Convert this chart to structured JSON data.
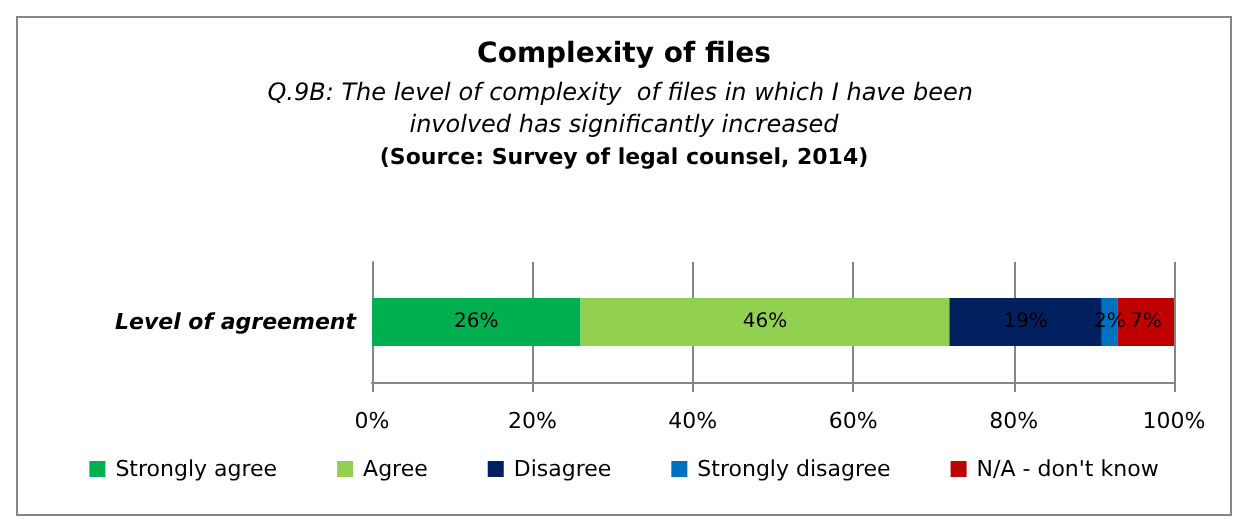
{
  "chart_data": {
    "type": "bar",
    "orientation": "horizontal",
    "stacked": true,
    "title": "Complexity of files",
    "subtitle": "Q.9B: The level of complexity  of files in which I have been involved has significantly increased",
    "annotations": [
      "(Source: Survey of legal counsel, 2014)"
    ],
    "categories": [
      "Level of agreement"
    ],
    "series": [
      {
        "name": "Strongly agree",
        "color": "#00b050",
        "values": [
          26
        ],
        "value_labels": [
          "26%"
        ]
      },
      {
        "name": "Agree",
        "color": "#92d050",
        "values": [
          46
        ],
        "value_labels": [
          "46%"
        ]
      },
      {
        "name": "Disagree",
        "color": "#002060",
        "values": [
          19
        ],
        "value_labels": [
          "19%"
        ]
      },
      {
        "name": "Strongly disagree",
        "color": "#0070c0",
        "values": [
          2
        ],
        "value_labels": [
          "2%"
        ]
      },
      {
        "name": "N/A - don't know",
        "color": "#c00000",
        "values": [
          7
        ],
        "value_labels": [
          "7%"
        ]
      }
    ],
    "xlim": [
      0,
      100
    ],
    "xticks": [
      {
        "value": 0,
        "label": "0%"
      },
      {
        "value": 20,
        "label": "20%"
      },
      {
        "value": 40,
        "label": "40%"
      },
      {
        "value": 60,
        "label": "60%"
      },
      {
        "value": 80,
        "label": "80%"
      },
      {
        "value": 100,
        "label": "100%"
      }
    ],
    "grid": "x",
    "legend": "bottom"
  }
}
